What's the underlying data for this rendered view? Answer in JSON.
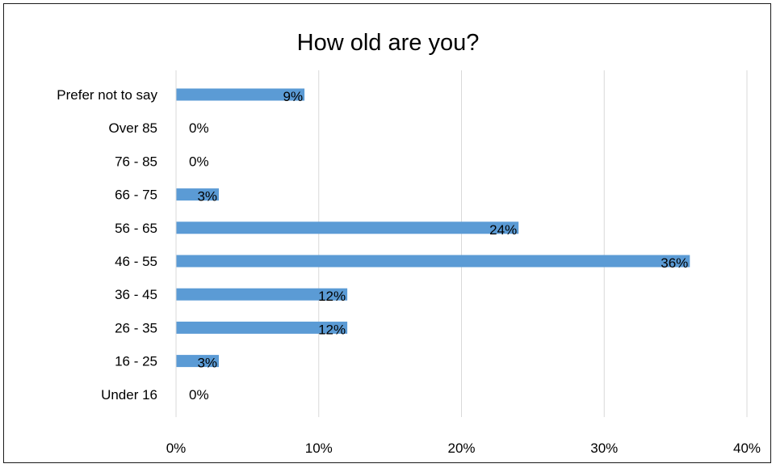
{
  "chart_data": {
    "type": "bar",
    "orientation": "horizontal",
    "title": "How old are you?",
    "categories": [
      "Prefer not to say",
      "Over 85",
      "76 - 85",
      "66 - 75",
      "56 - 65",
      "46 - 55",
      "36 - 45",
      "26 - 35",
      "16 - 25",
      "Under 16"
    ],
    "values": [
      9,
      0,
      0,
      3,
      24,
      36,
      12,
      12,
      3,
      0
    ],
    "data_labels": [
      "9%",
      "0%",
      "0%",
      "3%",
      "24%",
      "36%",
      "12%",
      "12%",
      "3%",
      "0%"
    ],
    "xlim": [
      0,
      40
    ],
    "xticks": [
      0,
      10,
      20,
      30,
      40
    ],
    "xtick_labels": [
      "0%",
      "10%",
      "20%",
      "30%",
      "40%"
    ],
    "xlabel": "",
    "ylabel": "",
    "grid": "vertical",
    "legend": "none",
    "bar_color": "#5b9bd5",
    "grid_color": "#d9d9d9"
  }
}
